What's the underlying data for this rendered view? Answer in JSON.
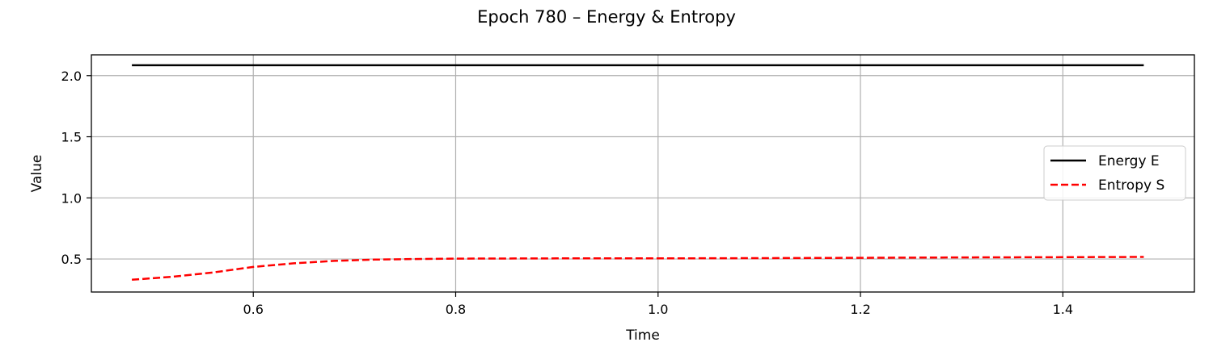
{
  "chart_data": {
    "type": "line",
    "title": "Epoch 780 – Energy & Entropy",
    "xlabel": "Time",
    "ylabel": "Value",
    "xlim": [
      0.44,
      1.53
    ],
    "ylim": [
      0.23,
      2.17
    ],
    "xticks": [
      "0.6",
      "0.8",
      "1.0",
      "1.2",
      "1.4"
    ],
    "yticks": [
      "0.5",
      "1.0",
      "1.5",
      "2.0"
    ],
    "grid": true,
    "legend_position": "center-right",
    "series": [
      {
        "name": "Energy E",
        "color": "#000000",
        "style": "solid",
        "x": [
          0.48,
          0.6,
          0.8,
          1.0,
          1.2,
          1.4,
          1.48
        ],
        "y": [
          2.085,
          2.085,
          2.085,
          2.085,
          2.085,
          2.085,
          2.085
        ]
      },
      {
        "name": "Entropy S",
        "color": "#ff0000",
        "style": "dashed",
        "x": [
          0.48,
          0.52,
          0.56,
          0.6,
          0.64,
          0.68,
          0.72,
          0.76,
          0.8,
          0.9,
          1.0,
          1.1,
          1.2,
          1.3,
          1.4,
          1.48
        ],
        "y": [
          0.33,
          0.355,
          0.39,
          0.435,
          0.465,
          0.485,
          0.495,
          0.5,
          0.503,
          0.505,
          0.505,
          0.507,
          0.51,
          0.513,
          0.515,
          0.517
        ]
      }
    ]
  }
}
